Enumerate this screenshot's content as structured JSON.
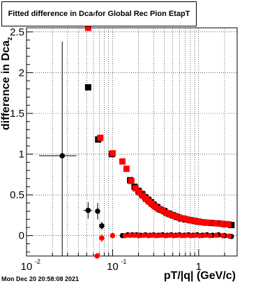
{
  "chart_data": {
    "type": "scatter",
    "title": "Fitted difference in Dca",
    "title_sub": "z",
    "title_suffix": " for Global Rec Pion EtapT",
    "xlabel": "pT/|q| (GeV/c)",
    "ylabel": "difference in Dca",
    "ylabel_sub": "z",
    "x_scale": "log",
    "xlim": [
      0.01,
      2.8
    ],
    "ylim": [
      -0.25,
      2.55
    ],
    "grid": true,
    "x_ticks": [
      {
        "value": 0.01,
        "label": "10",
        "sup": "-2"
      },
      {
        "value": 0.1,
        "label": "10",
        "sup": "-1"
      },
      {
        "value": 1,
        "label": "1",
        "sup": ""
      }
    ],
    "y_ticks": [
      {
        "value": 0,
        "label": "0"
      },
      {
        "value": 0.5,
        "label": "0.5"
      },
      {
        "value": 1,
        "label": "1"
      },
      {
        "value": 1.5,
        "label": "1.5"
      },
      {
        "value": 2,
        "label": "2"
      },
      {
        "value": 2.5,
        "label": "2.5"
      }
    ],
    "series": [
      {
        "marker": "square",
        "color": "#000000",
        "points": [
          {
            "x": 0.052,
            "y": 1.82,
            "ey": 0.03,
            "ex": 0.003
          },
          {
            "x": 0.068,
            "y": 1.18,
            "ey": 0.03,
            "ex": 0.003
          },
          {
            "x": 0.098,
            "y": 1.0,
            "ey": 0.02,
            "ex": 0.005
          },
          {
            "x": 0.16,
            "y": 0.68,
            "ey": 0.02
          },
          {
            "x": 0.18,
            "y": 0.6,
            "ey": 0.02
          },
          {
            "x": 0.2,
            "y": 0.55,
            "ey": 0.02
          },
          {
            "x": 0.22,
            "y": 0.51,
            "ey": 0.02
          },
          {
            "x": 0.24,
            "y": 0.47,
            "ey": 0.02
          },
          {
            "x": 0.26,
            "y": 0.44,
            "ey": 0.02
          },
          {
            "x": 0.28,
            "y": 0.41,
            "ey": 0.02
          },
          {
            "x": 0.3,
            "y": 0.38,
            "ey": 0.02
          },
          {
            "x": 0.33,
            "y": 0.35,
            "ey": 0.02
          },
          {
            "x": 0.36,
            "y": 0.32,
            "ey": 0.02
          },
          {
            "x": 0.4,
            "y": 0.3,
            "ey": 0.02
          },
          {
            "x": 0.45,
            "y": 0.27,
            "ey": 0.02
          },
          {
            "x": 0.5,
            "y": 0.25,
            "ey": 0.02
          },
          {
            "x": 0.56,
            "y": 0.23,
            "ey": 0.02
          },
          {
            "x": 0.63,
            "y": 0.21,
            "ey": 0.02
          },
          {
            "x": 0.7,
            "y": 0.2,
            "ey": 0.02
          },
          {
            "x": 0.8,
            "y": 0.19,
            "ey": 0.02
          },
          {
            "x": 0.9,
            "y": 0.18,
            "ey": 0.02
          },
          {
            "x": 1.0,
            "y": 0.17,
            "ey": 0.02
          },
          {
            "x": 1.2,
            "y": 0.16,
            "ey": 0.02
          },
          {
            "x": 1.4,
            "y": 0.155,
            "ey": 0.02
          },
          {
            "x": 1.7,
            "y": 0.15,
            "ey": 0.02
          },
          {
            "x": 2.0,
            "y": 0.14,
            "ey": 0.02
          },
          {
            "x": 2.4,
            "y": 0.13,
            "ey": 0.02
          }
        ]
      },
      {
        "marker": "square",
        "color": "#ff0000",
        "points": [
          {
            "x": 0.052,
            "y": 2.55,
            "ey": 0.03,
            "ex": 0.003
          },
          {
            "x": 0.072,
            "y": 1.2,
            "ey": 0.03,
            "ex": 0.003
          },
          {
            "x": 0.1,
            "y": 1.01,
            "ey": 0.02
          },
          {
            "x": 0.13,
            "y": 0.91,
            "ey": 0.02
          },
          {
            "x": 0.145,
            "y": 0.82,
            "ey": 0.02
          },
          {
            "x": 0.165,
            "y": 0.67,
            "ey": 0.02
          },
          {
            "x": 0.185,
            "y": 0.58,
            "ey": 0.02
          },
          {
            "x": 0.205,
            "y": 0.53,
            "ey": 0.02
          },
          {
            "x": 0.225,
            "y": 0.49,
            "ey": 0.02
          },
          {
            "x": 0.245,
            "y": 0.45,
            "ey": 0.02
          },
          {
            "x": 0.265,
            "y": 0.42,
            "ey": 0.02
          },
          {
            "x": 0.285,
            "y": 0.39,
            "ey": 0.02
          },
          {
            "x": 0.31,
            "y": 0.36,
            "ey": 0.02
          },
          {
            "x": 0.34,
            "y": 0.33,
            "ey": 0.02
          },
          {
            "x": 0.38,
            "y": 0.31,
            "ey": 0.02
          },
          {
            "x": 0.42,
            "y": 0.28,
            "ey": 0.02
          },
          {
            "x": 0.47,
            "y": 0.26,
            "ey": 0.02
          },
          {
            "x": 0.53,
            "y": 0.24,
            "ey": 0.02
          },
          {
            "x": 0.6,
            "y": 0.22,
            "ey": 0.02
          },
          {
            "x": 0.67,
            "y": 0.21,
            "ey": 0.02
          },
          {
            "x": 0.75,
            "y": 0.195,
            "ey": 0.02
          },
          {
            "x": 0.85,
            "y": 0.185,
            "ey": 0.02
          },
          {
            "x": 0.95,
            "y": 0.175,
            "ey": 0.02
          },
          {
            "x": 1.1,
            "y": 0.165,
            "ey": 0.02
          },
          {
            "x": 1.3,
            "y": 0.158,
            "ey": 0.02
          },
          {
            "x": 1.55,
            "y": 0.152,
            "ey": 0.02
          },
          {
            "x": 1.85,
            "y": 0.145,
            "ey": 0.02
          },
          {
            "x": 2.2,
            "y": 0.14,
            "ey": 0.02
          }
        ]
      },
      {
        "marker": "circle",
        "color": "#000000",
        "points": [
          {
            "x": 0.026,
            "y": 0.98,
            "ey": 1.4,
            "ex": 0.012
          },
          {
            "x": 0.052,
            "y": 0.31,
            "ey": 0.1,
            "ex": 0.006
          },
          {
            "x": 0.067,
            "y": 0.3,
            "ey": 0.1,
            "ex": 0.004
          },
          {
            "x": 0.075,
            "y": 0.12,
            "ey": 0.05,
            "ex": 0.003
          },
          {
            "x": 0.13,
            "y": 0.0,
            "ey": 0.02
          },
          {
            "x": 0.15,
            "y": 0.01,
            "ey": 0.01
          },
          {
            "x": 0.17,
            "y": 0.01,
            "ey": 0.01
          },
          {
            "x": 0.19,
            "y": 0.01,
            "ey": 0.01
          },
          {
            "x": 0.21,
            "y": 0.005,
            "ey": 0.01
          },
          {
            "x": 0.24,
            "y": 0.01,
            "ey": 0.01
          },
          {
            "x": 0.27,
            "y": 0.005,
            "ey": 0.01
          },
          {
            "x": 0.3,
            "y": 0.01,
            "ey": 0.01
          },
          {
            "x": 0.34,
            "y": 0.005,
            "ey": 0.01
          },
          {
            "x": 0.38,
            "y": 0.01,
            "ey": 0.01
          },
          {
            "x": 0.43,
            "y": 0.005,
            "ey": 0.01
          },
          {
            "x": 0.48,
            "y": 0.01,
            "ey": 0.01
          },
          {
            "x": 0.54,
            "y": 0.005,
            "ey": 0.01
          },
          {
            "x": 0.6,
            "y": 0.01,
            "ey": 0.01
          },
          {
            "x": 0.68,
            "y": 0.005,
            "ey": 0.01
          },
          {
            "x": 0.76,
            "y": 0.01,
            "ey": 0.01
          },
          {
            "x": 0.86,
            "y": 0.005,
            "ey": 0.01
          },
          {
            "x": 0.96,
            "y": 0.01,
            "ey": 0.01
          },
          {
            "x": 1.1,
            "y": 0.005,
            "ey": 0.01
          },
          {
            "x": 1.25,
            "y": 0.01,
            "ey": 0.01
          },
          {
            "x": 1.45,
            "y": 0.005,
            "ey": 0.01
          },
          {
            "x": 1.7,
            "y": 0.01,
            "ey": 0.01
          },
          {
            "x": 2.0,
            "y": 0.0,
            "ey": 0.01
          },
          {
            "x": 2.4,
            "y": -0.01,
            "ey": 0.01
          }
        ]
      },
      {
        "marker": "circle",
        "color": "#ff0000",
        "points": [
          {
            "x": 0.066,
            "y": -0.26,
            "ey": 0.05,
            "ex": 0.003
          },
          {
            "x": 0.075,
            "y": -0.03,
            "ey": 0.05,
            "ex": 0.003
          },
          {
            "x": 0.1,
            "y": 0.0,
            "ey": 0.02
          },
          {
            "x": 0.14,
            "y": 0.0,
            "ey": 0.01
          },
          {
            "x": 0.16,
            "y": 0.005,
            "ey": 0.01
          },
          {
            "x": 0.18,
            "y": 0.005,
            "ey": 0.01
          },
          {
            "x": 0.2,
            "y": 0.0,
            "ey": 0.01
          },
          {
            "x": 0.23,
            "y": 0.005,
            "ey": 0.01
          },
          {
            "x": 0.26,
            "y": 0.0,
            "ey": 0.01
          },
          {
            "x": 0.29,
            "y": 0.005,
            "ey": 0.01
          },
          {
            "x": 0.32,
            "y": 0.0,
            "ey": 0.01
          },
          {
            "x": 0.36,
            "y": 0.005,
            "ey": 0.01
          },
          {
            "x": 0.41,
            "y": 0.0,
            "ey": 0.01
          },
          {
            "x": 0.46,
            "y": 0.005,
            "ey": 0.01
          },
          {
            "x": 0.51,
            "y": 0.0,
            "ey": 0.01
          },
          {
            "x": 0.57,
            "y": 0.005,
            "ey": 0.01
          },
          {
            "x": 0.64,
            "y": 0.0,
            "ey": 0.01
          },
          {
            "x": 0.72,
            "y": 0.005,
            "ey": 0.01
          },
          {
            "x": 0.81,
            "y": 0.0,
            "ey": 0.01
          },
          {
            "x": 0.91,
            "y": 0.005,
            "ey": 0.01
          },
          {
            "x": 1.03,
            "y": 0.0,
            "ey": 0.01
          },
          {
            "x": 1.18,
            "y": 0.005,
            "ey": 0.01
          },
          {
            "x": 1.35,
            "y": 0.0,
            "ey": 0.01
          },
          {
            "x": 1.6,
            "y": 0.005,
            "ey": 0.01
          },
          {
            "x": 1.9,
            "y": 0.0,
            "ey": 0.01
          },
          {
            "x": 2.25,
            "y": -0.005,
            "ey": 0.01
          }
        ]
      }
    ]
  },
  "footer": {
    "timestamp": "Mon Dec 20 20:58:08 2021"
  }
}
